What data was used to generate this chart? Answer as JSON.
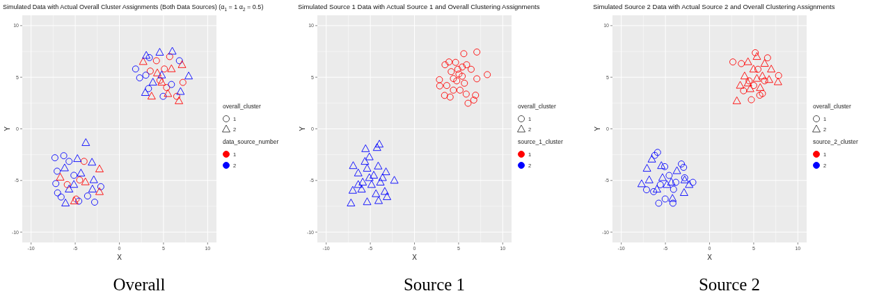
{
  "chart_data": [
    {
      "type": "scatter",
      "title": "Simulated Data with Actual Overall Cluster Assignments (Both Data Sources) (α$_{1}$ = 1 α$_{2}$ = 0.5)",
      "xlabel": "X",
      "ylabel": "Y",
      "legend_title": [
        "overall_cluster",
        "data_source_number"
      ],
      "legend": "right",
      "grid": true,
      "xlim": [
        -11,
        11
      ],
      "ylim": [
        -11,
        11
      ],
      "xticks": [
        -10,
        -5,
        0,
        5,
        10
      ],
      "yticks": [
        -10,
        -5,
        0,
        5,
        10
      ],
      "annotations": [
        "Overall",
        "1",
        "2"
      ],
      "series": [
        {
          "name": "1",
          "marker": "circle",
          "color": "#ff0000",
          "x": [
            4.2,
            5.7,
            7.2,
            6.5,
            3.5,
            5.1,
            4.6,
            5.35,
            -4.0,
            -4.9,
            -5.9,
            -4.5
          ],
          "values": [
            6.6,
            7.0,
            4.5,
            3.15,
            5.6,
            5.8,
            4.7,
            4.0,
            -3.15,
            -6.8,
            -5.4,
            -4.95
          ]
        },
        {
          "name": "2",
          "marker": "circle",
          "color": "#0000ff",
          "x": [
            1.84,
            2.3,
            3.4,
            3.0,
            3.3,
            4.96,
            6.8,
            5.9,
            -7.3,
            -6.3,
            -7.05,
            -7.2,
            -7.0,
            -2.8,
            -2.1,
            -5.7,
            -6.6,
            -3.6,
            -4.6,
            -5.15
          ],
          "values": [
            5.8,
            4.94,
            6.9,
            5.2,
            3.9,
            3.15,
            6.6,
            4.3,
            -2.8,
            -2.6,
            -4.1,
            -5.3,
            -6.2,
            -7.1,
            -5.6,
            -3.15,
            -6.6,
            -6.5,
            -7.0,
            -4.5
          ]
        },
        {
          "marker": "triangle",
          "color": "#ff0000",
          "x": [
            2.7,
            3.65,
            6.75,
            7.1,
            5.5,
            4.3,
            5.9,
            4.8,
            -2.25,
            -2.25,
            -5.1,
            -6.7,
            -3.85
          ],
          "values": [
            6.5,
            3.15,
            2.7,
            6.2,
            3.4,
            5.4,
            5.8,
            4.5,
            -3.9,
            -6.1,
            -7.0,
            -4.7,
            -5.15
          ]
        },
        {
          "marker": "triangle",
          "color": "#0000ff",
          "x": [
            4.57,
            6.0,
            7.85,
            3.05,
            2.94,
            6.93,
            3.8,
            4.8,
            -3.8,
            -4.75,
            -3.1,
            -2.9,
            -6.1,
            -6.2,
            -3.05,
            -5.15,
            -4.35,
            -5.7
          ],
          "values": [
            7.4,
            7.5,
            5.1,
            7.1,
            3.5,
            3.6,
            4.5,
            5.2,
            -1.35,
            -2.9,
            -3.25,
            -4.95,
            -7.2,
            -3.8,
            -5.85,
            -5.4,
            -4.3,
            -5.85
          ]
        }
      ]
    },
    {
      "type": "scatter",
      "title": "Simulated Source 1 Data with Actual Source 1 and Overall Clustering Assignments",
      "xlabel": "X",
      "ylabel": "Y",
      "legend_title": [
        "overall_cluster",
        "source_1_cluster"
      ],
      "legend": "right",
      "grid": true,
      "xlim": [
        -11,
        11
      ],
      "ylim": [
        -11,
        11
      ],
      "xticks": [
        -10,
        -5,
        0,
        5,
        10
      ],
      "yticks": [
        -10,
        -5,
        0,
        5,
        10
      ],
      "annotations": [
        "Source 1",
        "1",
        "2"
      ],
      "series": [
        {
          "name": "1",
          "marker": "circle",
          "color": "#ff0000",
          "x": [
            7.07,
            5.59,
            8.25,
            7.07,
            6.92,
            6.72,
            6.07,
            3.41,
            2.83,
            2.86,
            3.91,
            3.46,
            4.04,
            5.16,
            5.86,
            6.42,
            4.91,
            4.41,
            5.41,
            4.79,
            5.91,
            4.16,
            5.04,
            3.66,
            4.66,
            5.66,
            4.41,
            5.41
          ],
          "values": [
            7.44,
            7.28,
            5.25,
            4.85,
            3.26,
            2.79,
            2.48,
            3.24,
            4.76,
            4.16,
            6.48,
            6.21,
            3.08,
            3.75,
            3.37,
            5.77,
            5.77,
            4.87,
            5.1,
            4.65,
            6.21,
            5.54,
            5.32,
            4.2,
            6.44,
            4.42,
            3.75,
            5.99
          ]
        },
        {
          "name": "2",
          "marker": "triangle",
          "color": "#0000ff",
          "x": [
            -7.19,
            -5.36,
            -4.06,
            -3.11,
            -2.28,
            -3.98,
            -4.24,
            -5.54,
            -6.94,
            -6.99,
            -5.11,
            -3.23,
            -3.36,
            -6.37,
            -5.86,
            -4.61,
            -4.11,
            -5.36,
            -4.86,
            -3.86,
            -5.61,
            -5.99,
            -4.36,
            -3.61,
            -5.11,
            -6.37
          ],
          "values": [
            -7.2,
            -7.08,
            -6.97,
            -6.59,
            -5.0,
            -1.5,
            -1.83,
            -1.94,
            -3.58,
            -5.97,
            -2.73,
            -4.18,
            -6.08,
            -4.29,
            -5.18,
            -4.51,
            -3.62,
            -3.84,
            -5.41,
            -5.18,
            -3.17,
            -5.86,
            -6.3,
            -4.74,
            -4.74,
            -5.41
          ]
        }
      ]
    },
    {
      "type": "scatter",
      "title": "Simulated Source 2 Data with Actual Source 2 and Overall Clustering Assignments",
      "xlabel": "X",
      "ylabel": "Y",
      "legend_title": [
        "overall_cluster",
        "source_2_cluster"
      ],
      "legend": "right",
      "grid": true,
      "xlim": [
        -11,
        11
      ],
      "ylim": [
        -11,
        11
      ],
      "xticks": [
        -10,
        -5,
        0,
        5,
        10
      ],
      "yticks": [
        -10,
        -5,
        0,
        5,
        10
      ],
      "annotations": [
        "Source 2",
        "1",
        "2"
      ],
      "series": [
        {
          "name": "1",
          "marker": "circle",
          "color": "#ff0000",
          "x": [
            2.64,
            5.18,
            6.57,
            7.82,
            4.73,
            5.69,
            5.99,
            3.85,
            3.6,
            4.48,
            5.48,
            6.24,
            5.0
          ],
          "values": [
            6.48,
            7.37,
            6.88,
            5.16,
            2.82,
            3.26,
            3.42,
            3.69,
            6.32,
            4.65,
            5.77,
            4.65,
            4.2
          ]
        },
        {
          "marker": "triangle",
          "color": "#ff0000",
          "x": [
            3.09,
            7.75,
            6.99,
            6.24,
            3.47,
            5.36,
            4.35,
            3.97,
            4.6,
            5.99,
            6.74,
            4.98,
            5.36,
            4.35,
            5.74
          ],
          "values": [
            2.7,
            4.54,
            5.77,
            6.32,
            4.2,
            6.99,
            6.48,
            5.1,
            3.87,
            5.1,
            4.76,
            5.77,
            4.87,
            4.42,
            3.98
          ]
        },
        {
          "name": "2",
          "marker": "circle",
          "color": "#0000ff",
          "x": [
            -5.89,
            -6.21,
            -3.19,
            -2.94,
            -1.89,
            -7.14,
            -5.76,
            -5.03,
            -4.15,
            -5.08,
            -3.82,
            -5.58,
            -4.58,
            -2.82,
            -6.34,
            -4.08
          ],
          "values": [
            -2.28,
            -2.57,
            -3.4,
            -3.73,
            -5.18,
            -5.9,
            -7.2,
            -6.79,
            -7.2,
            -3.66,
            -5.18,
            -5.41,
            -4.51,
            -4.74,
            -6.08,
            -5.86
          ]
        },
        {
          "marker": "triangle",
          "color": "#0000ff",
          "x": [
            -6.54,
            -7.09,
            -7.7,
            -2.89,
            -2.31,
            -4.2,
            -3.7,
            -5.46,
            -6.84,
            -5.33,
            -4.83,
            -5.96,
            -4.33,
            -2.82
          ],
          "values": [
            -2.95,
            -3.84,
            -5.34,
            -6.19,
            -5.41,
            -6.75,
            -4.07,
            -3.58,
            -4.96,
            -4.74,
            -5.41,
            -5.86,
            -5.18,
            -4.96
          ]
        }
      ]
    }
  ]
}
